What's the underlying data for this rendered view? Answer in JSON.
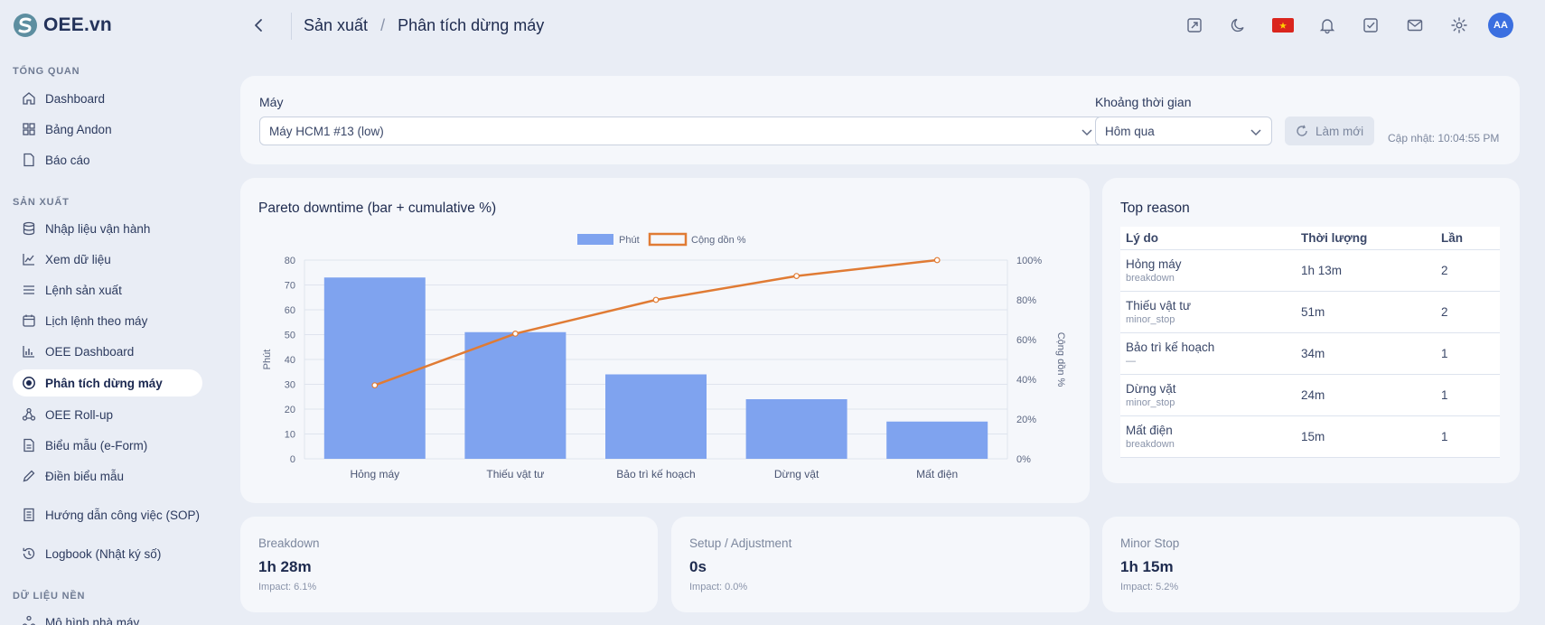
{
  "app": {
    "name": "OEE.vn"
  },
  "sidebar": {
    "sections": [
      {
        "label": "TỔNG QUAN"
      },
      {
        "label": "SẢN XUẤT"
      },
      {
        "label": "DỮ LIỆU NỀN"
      }
    ],
    "items": [
      {
        "label": "Dashboard",
        "icon": "home-icon"
      },
      {
        "label": "Bảng Andon",
        "icon": "grid-icon"
      },
      {
        "label": "Báo cáo",
        "icon": "document-icon"
      },
      {
        "label": "Nhập liệu vận hành",
        "icon": "database-icon"
      },
      {
        "label": "Xem dữ liệu",
        "icon": "line-chart-icon"
      },
      {
        "label": "Lệnh sản xuất",
        "icon": "list-icon"
      },
      {
        "label": "Lịch lệnh theo máy",
        "icon": "calendar-icon"
      },
      {
        "label": "OEE Dashboard",
        "icon": "bar-chart-icon"
      },
      {
        "label": "Phân tích dừng máy",
        "icon": "stop-circle-icon",
        "active": true
      },
      {
        "label": "OEE Roll-up",
        "icon": "hierarchy-icon"
      },
      {
        "label": "Biểu mẫu (e-Form)",
        "icon": "form-icon"
      },
      {
        "label": "Điền biểu mẫu",
        "icon": "pencil-icon"
      },
      {
        "label": "Hướng dẫn công việc (SOP)",
        "icon": "book-icon"
      },
      {
        "label": "Logbook (Nhật ký số)",
        "icon": "history-icon"
      },
      {
        "label": "Mô hình nhà máy",
        "icon": "factory-icon"
      }
    ]
  },
  "header": {
    "breadcrumb": [
      "Sản xuất",
      "Phân tích dừng máy"
    ],
    "breadcrumb_sep": "/",
    "avatar": "AA"
  },
  "filters": {
    "machine_label": "Máy",
    "machine_value": "Máy HCM1 #13 (low)",
    "period_label": "Khoảng thời gian",
    "period_value": "Hôm qua",
    "refresh_label": "Làm mới",
    "updated": "Cập nhật: 10:04:55 PM"
  },
  "pareto": {
    "title": "Pareto downtime (bar + cumulative %)"
  },
  "chart_data": {
    "type": "bar",
    "categories": [
      "Hỏng máy",
      "Thiếu vật tư",
      "Bảo trì kế hoạch",
      "Dừng vật",
      "Mất điện"
    ],
    "series": [
      {
        "name": "Phút",
        "type": "bar",
        "axis": "left",
        "values": [
          73,
          51,
          34,
          24,
          15
        ],
        "color": "#7fa3ef"
      },
      {
        "name": "Cộng dồn %",
        "type": "line",
        "axis": "right",
        "values": [
          37,
          63,
          80,
          92,
          100
        ],
        "color": "#e07b34"
      }
    ],
    "ylabel": "Phút",
    "y2label": "Cộng dồn %",
    "ylim": [
      0,
      80
    ],
    "yticks": [
      0,
      10,
      20,
      30,
      40,
      50,
      60,
      70,
      80
    ],
    "y2lim": [
      0,
      100
    ],
    "y2ticks": [
      "0%",
      "20%",
      "40%",
      "60%",
      "80%",
      "100%"
    ],
    "grid": true,
    "legend": "top-center"
  },
  "top_reason": {
    "title": "Top reason",
    "columns": [
      "Lý do",
      "Thời lượng",
      "Lần"
    ],
    "rows": [
      {
        "name": "Hỏng máy",
        "code": "breakdown",
        "duration": "1h 13m",
        "count": "2"
      },
      {
        "name": "Thiếu vật tư",
        "code": "minor_stop",
        "duration": "51m",
        "count": "2"
      },
      {
        "name": "Bảo trì kế hoạch",
        "code": "—",
        "duration": "34m",
        "count": "1"
      },
      {
        "name": "Dừng vặt",
        "code": "minor_stop",
        "duration": "24m",
        "count": "1"
      },
      {
        "name": "Mất điện",
        "code": "breakdown",
        "duration": "15m",
        "count": "1"
      }
    ]
  },
  "kpis": [
    {
      "label": "Breakdown",
      "value": "1h 28m",
      "impact": "Impact: 6.1%"
    },
    {
      "label": "Setup / Adjustment",
      "value": "0s",
      "impact": "Impact: 0.0%"
    },
    {
      "label": "Minor Stop",
      "value": "1h 15m",
      "impact": "Impact: 5.2%"
    }
  ]
}
